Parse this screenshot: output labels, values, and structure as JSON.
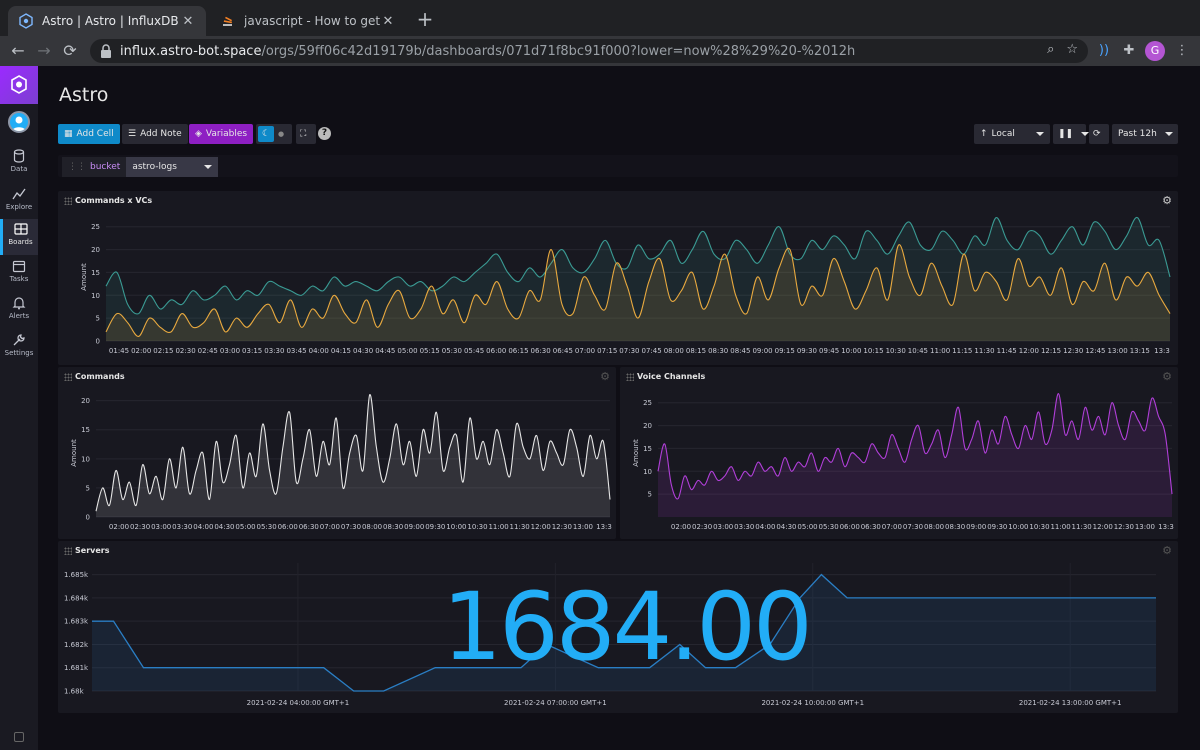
{
  "browser": {
    "tabs": [
      {
        "label": "Astro | Astro | InfluxDB",
        "active": true
      },
      {
        "label": "javascript - How to get subarra",
        "active": false
      }
    ],
    "url_host": "influx.astro-bot.space",
    "url_path": "/orgs/59ff06c42d19179b/dashboards/071d71f8bc91f000?lower=now%28%29%20-%2012h",
    "profile_initial": "G"
  },
  "sidebar": {
    "items": [
      {
        "label": "Data",
        "icon": "database-icon"
      },
      {
        "label": "Explore",
        "icon": "graph-icon"
      },
      {
        "label": "Boards",
        "icon": "dashboard-icon",
        "active": true
      },
      {
        "label": "Tasks",
        "icon": "calendar-icon"
      },
      {
        "label": "Alerts",
        "icon": "bell-icon"
      },
      {
        "label": "Settings",
        "icon": "wrench-icon"
      }
    ]
  },
  "dashboard": {
    "title": "Astro",
    "buttons": {
      "add_cell": "Add Cell",
      "add_note": "Add Note",
      "variables": "Variables"
    },
    "timezone": "Local",
    "time_range": "Past 12h",
    "variable": {
      "key": "bucket",
      "value": "astro-logs"
    }
  },
  "colors": {
    "accent_blue": "#22adf6",
    "teal_series": "#3a9a93",
    "orange_series": "#e8a93f",
    "white_series": "#e6e6e6",
    "purple_series": "#b13fd9",
    "servers_line": "#2a7ec4"
  },
  "cells": {
    "commands_vcs": {
      "title": "Commands x VCs",
      "ylabel": "Amount"
    },
    "commands": {
      "title": "Commands",
      "ylabel": "Amount"
    },
    "voice_channels": {
      "title": "Voice Channels",
      "ylabel": "Amount"
    },
    "servers": {
      "title": "Servers",
      "stat": "1684.00"
    }
  },
  "chart_data": [
    {
      "type": "line",
      "title": "Commands x VCs",
      "ylabel": "Amount",
      "ylim": [
        0,
        28
      ],
      "yticks": [
        0,
        5,
        10,
        15,
        20,
        25
      ],
      "x_tick_labels": [
        "01:45",
        "02:00",
        "02:15",
        "02:30",
        "02:45",
        "03:00",
        "03:15",
        "03:30",
        "03:45",
        "04:00",
        "04:15",
        "04:30",
        "04:45",
        "05:00",
        "05:15",
        "05:30",
        "05:45",
        "06:00",
        "06:15",
        "06:30",
        "06:45",
        "07:00",
        "07:15",
        "07:30",
        "07:45",
        "08:00",
        "08:15",
        "08:30",
        "08:45",
        "09:00",
        "09:15",
        "09:30",
        "09:45",
        "10:00",
        "10:15",
        "10:30",
        "10:45",
        "11:00",
        "11:15",
        "11:30",
        "11:45",
        "12:00",
        "12:15",
        "12:30",
        "12:45",
        "13:00",
        "13:15",
        "13:3"
      ],
      "series": [
        {
          "values": [
            12,
            15,
            8,
            6,
            10,
            7,
            9,
            8,
            11,
            9,
            10,
            12,
            9,
            11,
            10,
            13,
            12,
            11,
            10,
            12,
            11,
            14,
            12,
            13,
            12,
            11,
            13,
            14,
            12,
            13,
            11,
            12,
            14,
            13,
            15,
            17,
            19,
            15,
            13,
            16,
            14,
            17,
            20,
            16,
            15,
            18,
            22,
            17,
            16,
            21,
            18,
            19,
            22,
            17,
            20,
            24,
            19,
            18,
            22,
            20,
            17,
            21,
            25,
            19,
            18,
            22,
            20,
            23,
            21,
            18,
            24,
            22,
            19,
            23,
            26,
            21,
            20,
            24,
            22,
            19,
            23,
            21,
            27,
            22,
            20,
            24,
            23,
            19,
            22,
            25,
            21,
            26,
            24,
            20,
            23,
            27,
            21,
            22,
            14
          ]
        },
        {
          "values": [
            2,
            6,
            4,
            1,
            5,
            3,
            2,
            6,
            3,
            4,
            7,
            2,
            5,
            3,
            6,
            8,
            4,
            9,
            3,
            7,
            5,
            10,
            6,
            4,
            9,
            3,
            8,
            11,
            5,
            7,
            12,
            6,
            9,
            4,
            10,
            8,
            13,
            7,
            5,
            11,
            9,
            20,
            8,
            6,
            14,
            10,
            7,
            17,
            12,
            5,
            13,
            18,
            9,
            11,
            15,
            7,
            12,
            19,
            10,
            6,
            14,
            9,
            16,
            20,
            8,
            12,
            10,
            18,
            13,
            7,
            11,
            16,
            9,
            21,
            14,
            10,
            17,
            12,
            8,
            19,
            11,
            15,
            13,
            9,
            18,
            12,
            14,
            10,
            16,
            8,
            13,
            11,
            17,
            9,
            14,
            12,
            15,
            10,
            6
          ]
        }
      ]
    },
    {
      "type": "line",
      "title": "Commands",
      "ylabel": "Amount",
      "ylim": [
        0,
        22
      ],
      "yticks": [
        0,
        5,
        10,
        15,
        20
      ],
      "x_tick_labels": [
        "02:00",
        "02:30",
        "03:00",
        "03:30",
        "04:00",
        "04:30",
        "05:00",
        "05:30",
        "06:00",
        "06:30",
        "07:00",
        "07:30",
        "08:00",
        "08:30",
        "09:00",
        "09:30",
        "10:00",
        "10:30",
        "11:00",
        "11:30",
        "12:00",
        "12:30",
        "13:00",
        "13:3"
      ],
      "series": [
        {
          "values": [
            1,
            5,
            2,
            8,
            3,
            6,
            2,
            9,
            4,
            7,
            3,
            10,
            5,
            12,
            4,
            8,
            11,
            3,
            13,
            6,
            9,
            14,
            5,
            11,
            7,
            16,
            8,
            4,
            12,
            18,
            6,
            10,
            15,
            7,
            13,
            9,
            17,
            5,
            11,
            14,
            8,
            21,
            12,
            6,
            10,
            16,
            9,
            13,
            7,
            15,
            11,
            18,
            8,
            12,
            14,
            6,
            17,
            10,
            13,
            9,
            15,
            11,
            7,
            16,
            12,
            10,
            14,
            8,
            13,
            11,
            9,
            15,
            12,
            7,
            14,
            10,
            13,
            3
          ]
        }
      ]
    },
    {
      "type": "line",
      "title": "Voice Channels",
      "ylabel": "Amount",
      "ylim": [
        0,
        28
      ],
      "yticks": [
        5,
        10,
        15,
        20,
        25
      ],
      "x_tick_labels": [
        "02:00",
        "02:30",
        "03:00",
        "03:30",
        "04:00",
        "04:30",
        "05:00",
        "05:30",
        "06:00",
        "06:30",
        "07:00",
        "07:30",
        "08:00",
        "08:30",
        "09:00",
        "09:30",
        "10:00",
        "10:30",
        "11:00",
        "11:30",
        "12:00",
        "12:30",
        "13:00",
        "13:3"
      ],
      "series": [
        {
          "values": [
            10,
            16,
            7,
            4,
            9,
            6,
            8,
            7,
            10,
            8,
            9,
            11,
            8,
            10,
            9,
            12,
            10,
            11,
            9,
            13,
            10,
            12,
            11,
            14,
            10,
            13,
            12,
            15,
            11,
            14,
            13,
            12,
            16,
            14,
            13,
            18,
            15,
            12,
            17,
            20,
            14,
            16,
            19,
            13,
            18,
            24,
            15,
            17,
            21,
            14,
            19,
            16,
            22,
            18,
            15,
            20,
            17,
            23,
            16,
            19,
            27,
            18,
            21,
            17,
            24,
            19,
            22,
            18,
            25,
            20,
            17,
            23,
            21,
            19,
            26,
            22,
            18,
            5
          ]
        }
      ]
    },
    {
      "type": "line",
      "title": "Servers",
      "ylim": [
        1.68,
        1.6855
      ],
      "yticks_labels": [
        "1.685k",
        "1.684k",
        "1.683k",
        "1.682k",
        "1.681k",
        "1.68k"
      ],
      "yticks": [
        1.685,
        1.684,
        1.683,
        1.682,
        1.681,
        1.68
      ],
      "x_tick_labels": [
        "2021-02-24 04:00:00 GMT+1",
        "2021-02-24 07:00:00 GMT+1",
        "2021-02-24 10:00:00 GMT+1",
        "2021-02-24 13:00:00 GMT+1"
      ],
      "x": [
        1.6,
        1.85,
        2.2,
        4.3,
        4.65,
        5.0,
        5.6,
        5.9,
        6.3,
        6.6,
        6.9,
        7.5,
        7.8,
        8.1,
        8.45,
        8.75,
        9.1,
        9.5,
        9.85,
        10.1,
        10.4,
        14.0
      ],
      "values": [
        1.683,
        1.683,
        1.681,
        1.681,
        1.68,
        1.68,
        1.681,
        1.681,
        1.681,
        1.681,
        1.682,
        1.681,
        1.681,
        1.681,
        1.682,
        1.681,
        1.681,
        1.682,
        1.684,
        1.685,
        1.684,
        1.684
      ],
      "stat_value": "1684.00"
    }
  ]
}
